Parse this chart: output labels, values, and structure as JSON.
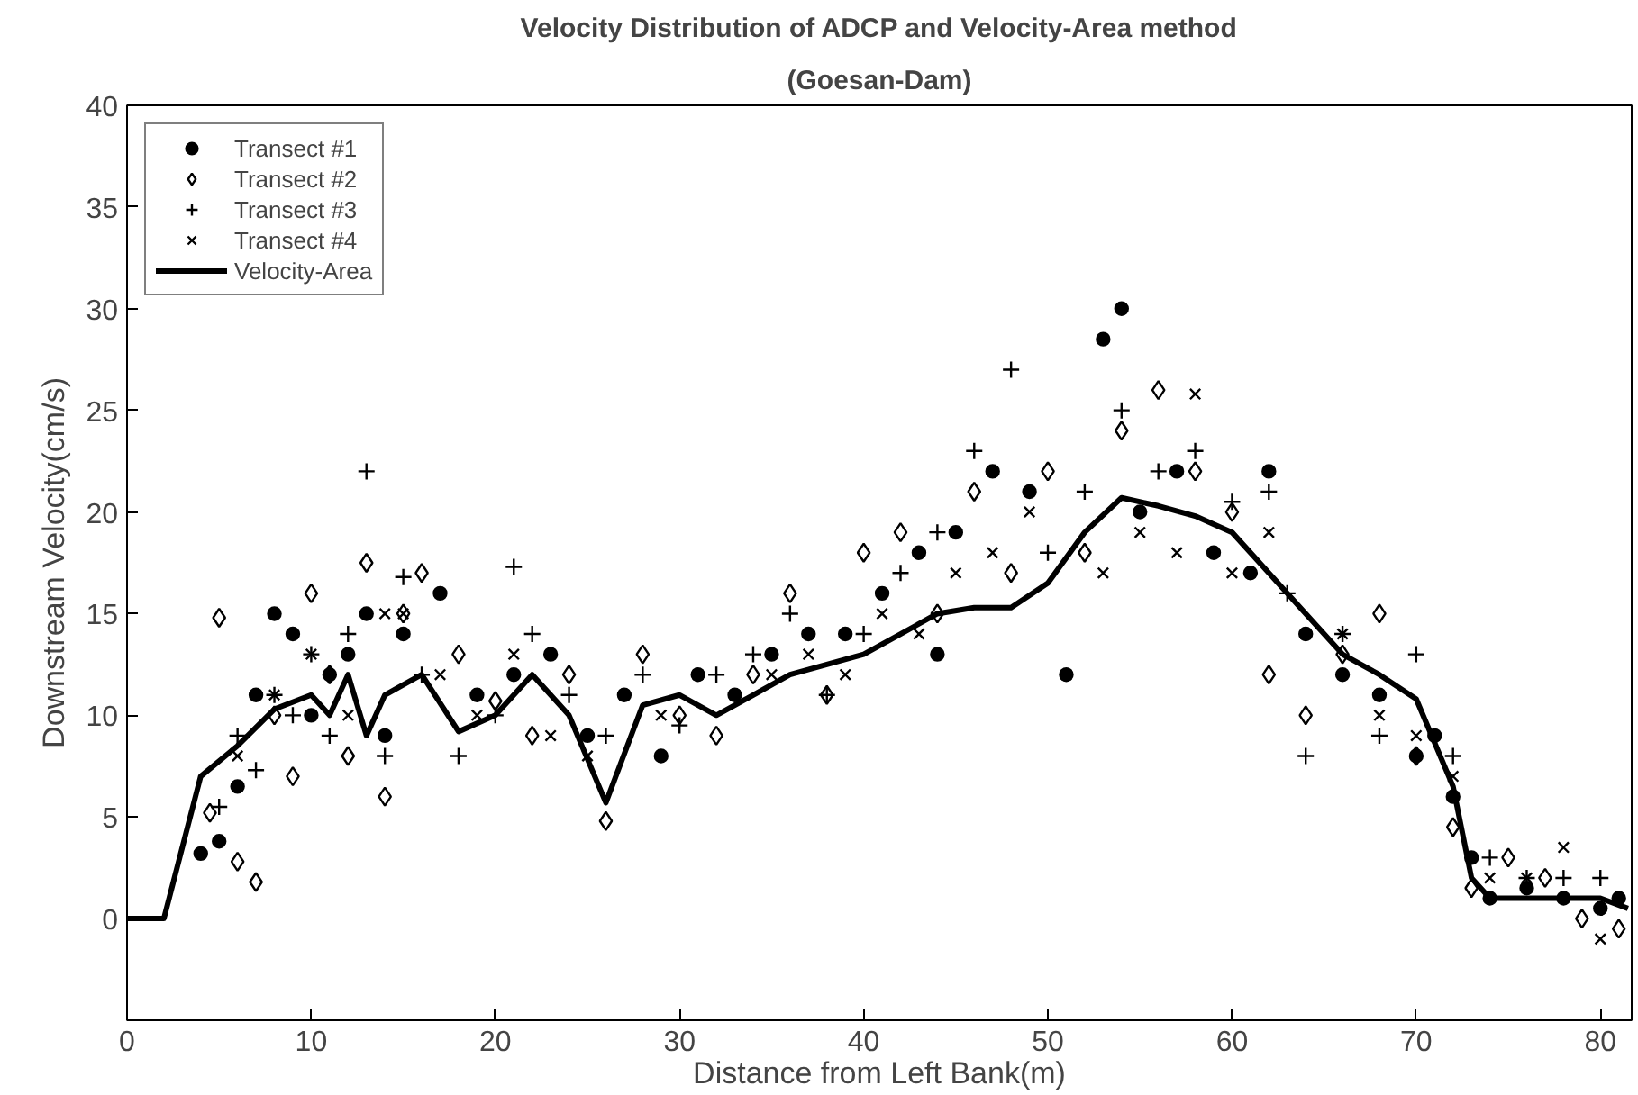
{
  "chart_data": {
    "type": "scatter",
    "title": "Velocity Distribution of ADCP and Velocity-Area method",
    "subtitle": "(Goesan-Dam)",
    "xlabel": "Distance from Left Bank(m)",
    "ylabel": "Downstream Velocity(cm/s)",
    "xlim": [
      0,
      81.7
    ],
    "ylim": [
      -5,
      40
    ],
    "xticks": [
      0,
      10,
      20,
      30,
      40,
      50,
      60,
      70,
      80
    ],
    "yticks": [
      0,
      5,
      10,
      15,
      20,
      25,
      30,
      35,
      40
    ],
    "grid": false,
    "legend": "top left",
    "series": [
      {
        "name": "Transect #1",
        "color": "#000000",
        "marker": "circle",
        "x": [
          4,
          5,
          6,
          7,
          8,
          9,
          10,
          11,
          12,
          13,
          14,
          15,
          17,
          19,
          21,
          23,
          25,
          27,
          29,
          31,
          33,
          35,
          37,
          39,
          41,
          43,
          44,
          45,
          47,
          49,
          51,
          53,
          54,
          55,
          57,
          59,
          61,
          62,
          64,
          66,
          68,
          70,
          71,
          72,
          73,
          74,
          76,
          78,
          80,
          81
        ],
        "values": [
          3.2,
          3.8,
          6.5,
          11,
          15,
          14,
          10,
          12,
          13,
          15,
          9,
          14,
          16,
          11,
          12,
          13,
          9,
          11,
          8,
          12,
          11,
          13,
          14,
          14,
          16,
          18,
          13,
          19,
          22,
          21,
          12,
          28.5,
          30,
          20,
          22,
          18,
          17,
          22,
          14,
          12,
          11,
          8,
          9,
          6,
          3,
          1,
          1.5,
          1,
          0.5,
          1
        ]
      },
      {
        "name": "Transect #2",
        "color": "#000000",
        "marker": "diamond",
        "x": [
          4.5,
          5,
          6,
          7,
          8,
          9,
          10,
          11,
          12,
          13,
          14,
          15,
          16,
          18,
          20,
          22,
          24,
          26,
          28,
          30,
          32,
          34,
          36,
          38,
          40,
          42,
          44,
          46,
          48,
          50,
          52,
          54,
          56,
          58,
          60,
          62,
          64,
          66,
          68,
          70,
          72,
          73,
          75,
          77,
          79,
          81
        ],
        "values": [
          5.2,
          14.8,
          2.8,
          1.8,
          10,
          7,
          16,
          12,
          8,
          17.5,
          6,
          15,
          17,
          13,
          10.7,
          9,
          12,
          4.8,
          13,
          10,
          9,
          12,
          16,
          11,
          18,
          19,
          15,
          21,
          17,
          22,
          18,
          24,
          26,
          22,
          20,
          12,
          10,
          13,
          15,
          8,
          4.5,
          1.5,
          3,
          2,
          0,
          -0.5
        ]
      },
      {
        "name": "Transect #3",
        "color": "#000000",
        "marker": "cross",
        "x": [
          5,
          6,
          7,
          8,
          9,
          10,
          11,
          12,
          13,
          14,
          15,
          16,
          18,
          20,
          21,
          22,
          24,
          26,
          28,
          30,
          32,
          34,
          36,
          38,
          40,
          42,
          44,
          46,
          48,
          50,
          52,
          54,
          56,
          58,
          60,
          62,
          63,
          64,
          66,
          68,
          70,
          72,
          74,
          76,
          78,
          80
        ],
        "values": [
          5.5,
          9,
          7.3,
          11,
          10,
          13,
          9,
          14,
          22,
          8,
          16.8,
          12,
          8,
          10,
          17.3,
          14,
          11,
          9,
          12,
          9.5,
          12,
          13,
          15,
          11,
          14,
          17,
          19,
          23,
          27,
          18,
          21,
          25,
          22,
          23,
          20.5,
          21,
          16,
          8,
          14,
          9,
          13,
          8,
          3,
          2,
          2,
          2
        ]
      },
      {
        "name": "Transect #4",
        "color": "#000000",
        "marker": "x",
        "x": [
          6,
          8,
          10,
          12,
          14,
          15,
          17,
          19,
          21,
          23,
          25,
          27,
          29,
          31,
          33,
          35,
          37,
          39,
          41,
          43,
          45,
          47,
          49,
          51,
          53,
          55,
          57,
          58,
          60,
          62,
          64,
          66,
          68,
          70,
          72,
          74,
          76,
          78,
          80
        ],
        "values": [
          8,
          11,
          13,
          10,
          15,
          15,
          12,
          10,
          13,
          9,
          8,
          11,
          10,
          12,
          11,
          12,
          13,
          12,
          15,
          14,
          17,
          18,
          20,
          12,
          17,
          19,
          18,
          25.8,
          17,
          19,
          14,
          14,
          10,
          9,
          7,
          2,
          2,
          3.5,
          -1
        ]
      },
      {
        "name": "Velocity-Area",
        "type": "line",
        "color": "#000000",
        "marker": "none",
        "line_style": "solid",
        "x": [
          0,
          2,
          4,
          6,
          8,
          10,
          11,
          12,
          13,
          14,
          16,
          18,
          20,
          22,
          24,
          26,
          28,
          30,
          32,
          34,
          36,
          38,
          40,
          42,
          44,
          46,
          48,
          50,
          52,
          54,
          56,
          58,
          60,
          62,
          64,
          66,
          68,
          70,
          72,
          73,
          74,
          76,
          78,
          80,
          81.5
        ],
        "values": [
          0,
          0,
          7,
          8.5,
          10.3,
          11,
          10,
          12,
          9,
          11,
          12,
          9.2,
          10,
          12,
          10,
          5.7,
          10.5,
          11,
          10,
          11,
          12,
          12.5,
          13,
          14,
          15,
          15.3,
          15.3,
          16.5,
          19,
          20.7,
          20.3,
          19.8,
          19,
          17,
          15,
          13,
          12,
          10.8,
          6.5,
          2,
          1,
          1,
          1,
          1,
          0.5
        ]
      }
    ]
  }
}
